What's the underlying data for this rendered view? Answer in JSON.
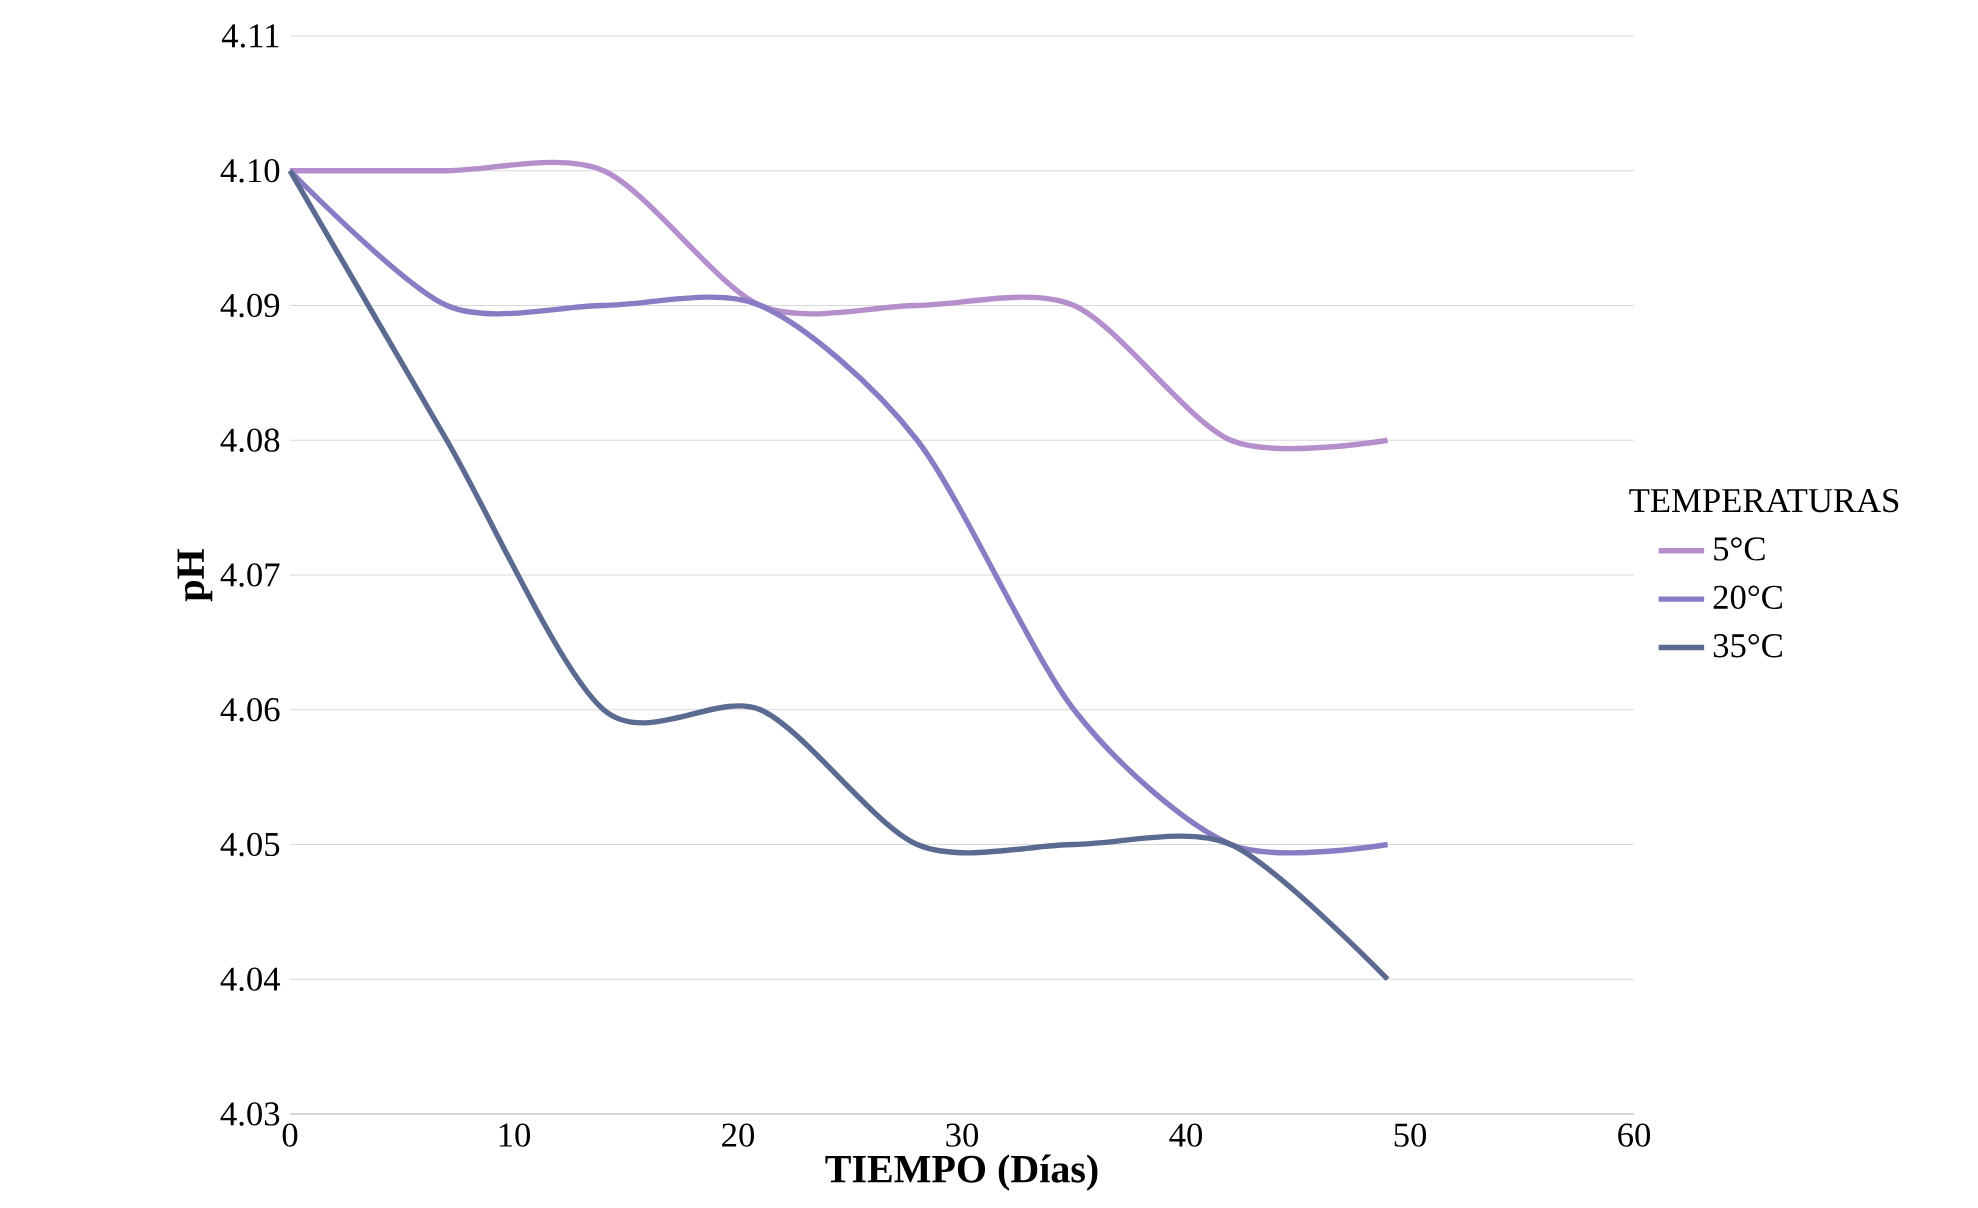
{
  "chart_data": {
    "type": "line",
    "xlabel": "TIEMPO (Días)",
    "ylabel": "pH",
    "legend_title": "TEMPERATURAS",
    "legend": "right",
    "grid": "y",
    "marker": "none",
    "line_style": "solid",
    "x": [
      0,
      7,
      14,
      21,
      28,
      35,
      42,
      49
    ],
    "series": [
      {
        "name": "5°C",
        "color": "#b48fcc",
        "values": [
          4.1,
          4.1,
          4.1,
          4.09,
          4.09,
          4.09,
          4.08,
          4.08
        ]
      },
      {
        "name": "20°C",
        "color": "#8a7cc4",
        "values": [
          4.1,
          4.09,
          4.09,
          4.09,
          4.08,
          4.06,
          4.05,
          4.05
        ]
      },
      {
        "name": "35°C",
        "color": "#5a6a90",
        "values": [
          4.1,
          4.08,
          4.06,
          4.06,
          4.05,
          4.05,
          4.05,
          4.04
        ]
      }
    ],
    "xlim": [
      0,
      60
    ],
    "xticks": [
      0,
      10,
      20,
      30,
      40,
      50,
      60
    ],
    "ylim": [
      4.03,
      4.11
    ],
    "yticks": [
      {
        "value": 4.03,
        "label": "4.03"
      },
      {
        "value": 4.04,
        "label": "4.04"
      },
      {
        "value": 4.05,
        "label": "4.05"
      },
      {
        "value": 4.06,
        "label": "4.06"
      },
      {
        "value": 4.07,
        "label": "4.07"
      },
      {
        "value": 4.08,
        "label": "4.08"
      },
      {
        "value": 4.09,
        "label": "4.09"
      },
      {
        "value": 4.1,
        "label": "4.10"
      },
      {
        "value": 4.11,
        "label": "4.11"
      }
    ]
  }
}
